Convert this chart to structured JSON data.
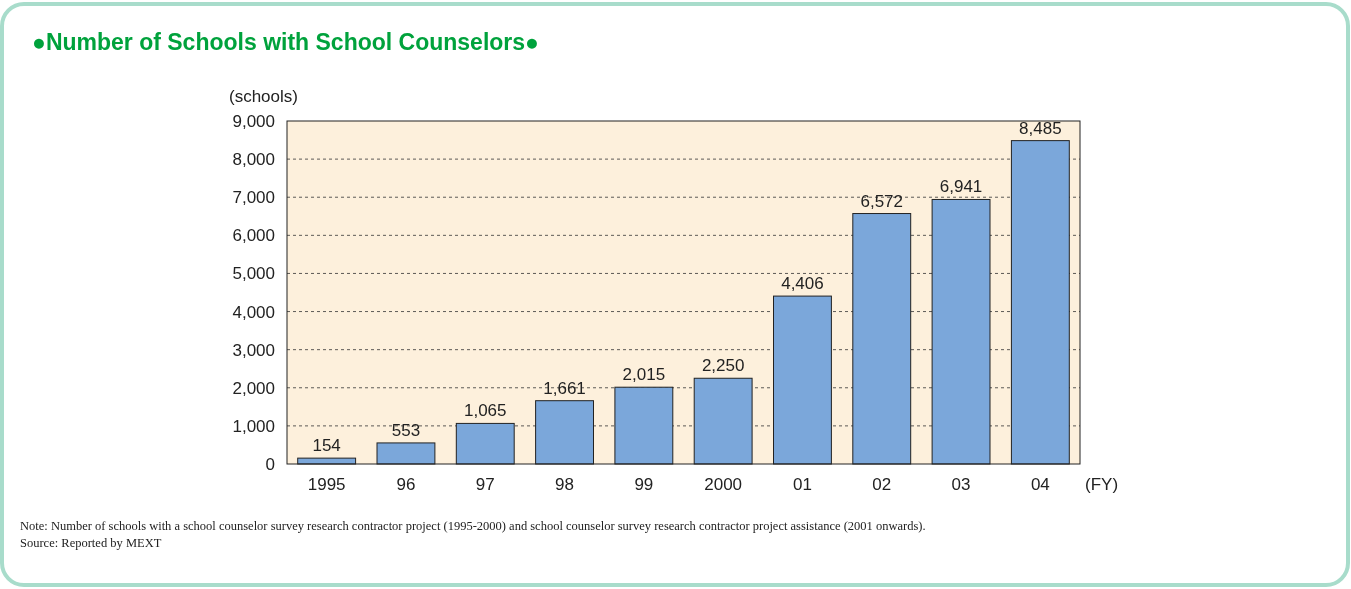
{
  "chart_data": {
    "type": "bar",
    "title": "●Number of Schools with School Counselors●",
    "ylabel": "(schools)",
    "xlabel": "(FY)",
    "categories": [
      "1995",
      "96",
      "97",
      "98",
      "99",
      "2000",
      "01",
      "02",
      "03",
      "04"
    ],
    "values": [
      154,
      553,
      1065,
      1661,
      2015,
      2250,
      4406,
      6572,
      6941,
      8485
    ],
    "value_labels": [
      "154",
      "553",
      "1,065",
      "1,661",
      "2,015",
      "2,250",
      "4,406",
      "6,572",
      "6,941",
      "8,485"
    ],
    "color": "#7ba7da",
    "ylim": [
      0,
      9000
    ],
    "yticks": [
      {
        "value": 0,
        "label": "0"
      },
      {
        "value": 1000,
        "label": "1,000"
      },
      {
        "value": 2000,
        "label": "2,000"
      },
      {
        "value": 3000,
        "label": "3,000"
      },
      {
        "value": 4000,
        "label": "4,000"
      },
      {
        "value": 5000,
        "label": "5,000"
      },
      {
        "value": 6000,
        "label": "6,000"
      },
      {
        "value": 7000,
        "label": "7,000"
      },
      {
        "value": 8000,
        "label": "8,000"
      },
      {
        "value": 9000,
        "label": "9,000"
      }
    ],
    "grid": "y",
    "annotations": [
      "Note: Number of schools with a school counselor survey research contractor project (1995-2000) and school counselor survey research contractor project assistance (2001 onwards).",
      "Source: Reported by MEXT"
    ]
  }
}
